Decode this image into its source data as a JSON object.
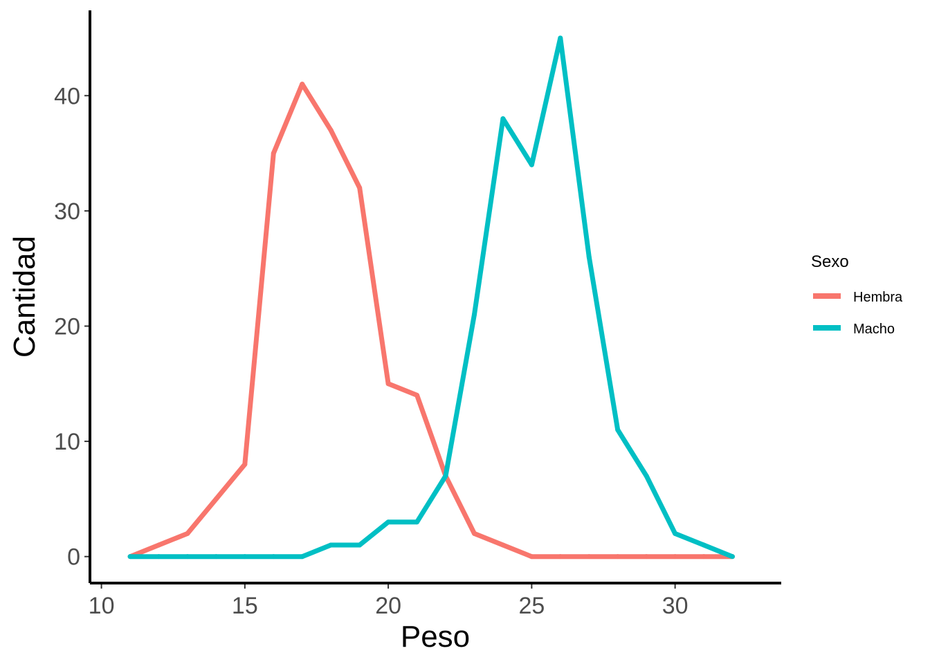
{
  "chart_data": {
    "type": "line",
    "xlabel": "Peso",
    "ylabel": "Cantidad",
    "xlim": [
      9.6,
      33.7
    ],
    "ylim": [
      -2.3,
      47.4
    ],
    "xticks": [
      10,
      15,
      20,
      25,
      30
    ],
    "yticks": [
      0,
      10,
      20,
      30,
      40
    ],
    "grid": false,
    "legend": {
      "title": "Sexo",
      "position": "right"
    },
    "series": [
      {
        "name": "Hembra",
        "color": "#F8766D",
        "x": [
          11,
          12,
          13,
          14,
          15,
          16,
          17,
          18,
          19,
          20,
          21,
          22,
          23,
          24,
          25,
          26,
          27,
          28,
          29,
          30,
          31,
          32
        ],
        "y": [
          0,
          1,
          2,
          5,
          8,
          35,
          41,
          37,
          32,
          15,
          14,
          7,
          2,
          1,
          0,
          0,
          0,
          0,
          0,
          0,
          0,
          0
        ]
      },
      {
        "name": "Macho",
        "color": "#00BFC4",
        "x": [
          11,
          12,
          13,
          14,
          15,
          16,
          17,
          18,
          19,
          20,
          21,
          22,
          23,
          24,
          25,
          26,
          27,
          28,
          29,
          30,
          31,
          32
        ],
        "y": [
          0,
          0,
          0,
          0,
          0,
          0,
          0,
          1,
          1,
          3,
          3,
          7,
          21,
          38,
          34,
          45,
          26,
          11,
          7,
          2,
          1,
          0
        ]
      }
    ]
  }
}
